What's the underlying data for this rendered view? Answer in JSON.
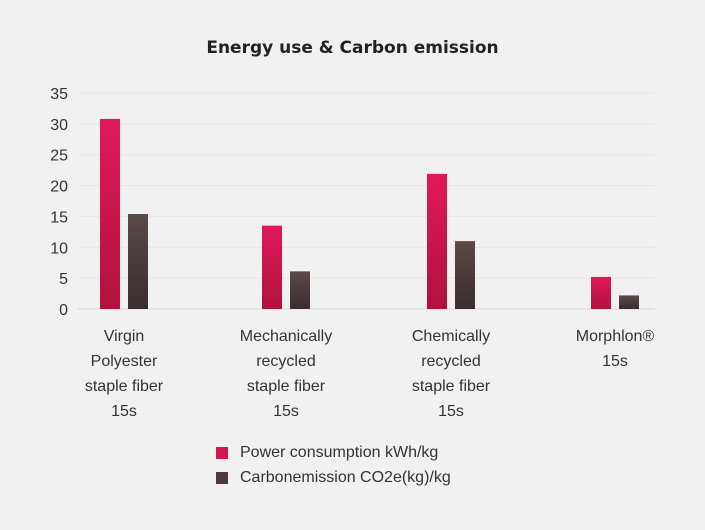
{
  "chart_data": {
    "type": "bar",
    "title": "Energy use & Carbon emission",
    "categories": [
      [
        "Virgin",
        "Polyester",
        "staple fiber",
        "15s"
      ],
      [
        "Mechanically",
        "recycled",
        "staple fiber",
        "15s"
      ],
      [
        "Chemically",
        "recycled",
        "staple fiber",
        "15s"
      ],
      [
        "Morphlon®",
        "15s"
      ]
    ],
    "series": [
      {
        "name": "Power consumption kWh/kg",
        "values": [
          30.8,
          13.5,
          21.9,
          5.2
        ],
        "color_top": "#e0185a",
        "color_bottom": "#b0123f"
      },
      {
        "name": "Carbonemission CO2e(kg)/kg",
        "values": [
          15.4,
          6.1,
          11.0,
          2.2
        ],
        "color_top": "#5a4a4a",
        "color_bottom": "#3a2d2d"
      }
    ],
    "ylim": [
      0,
      35
    ],
    "yticks": [
      0,
      5,
      10,
      15,
      20,
      25,
      30,
      35
    ],
    "grid": true,
    "legend_position": "bottom"
  }
}
